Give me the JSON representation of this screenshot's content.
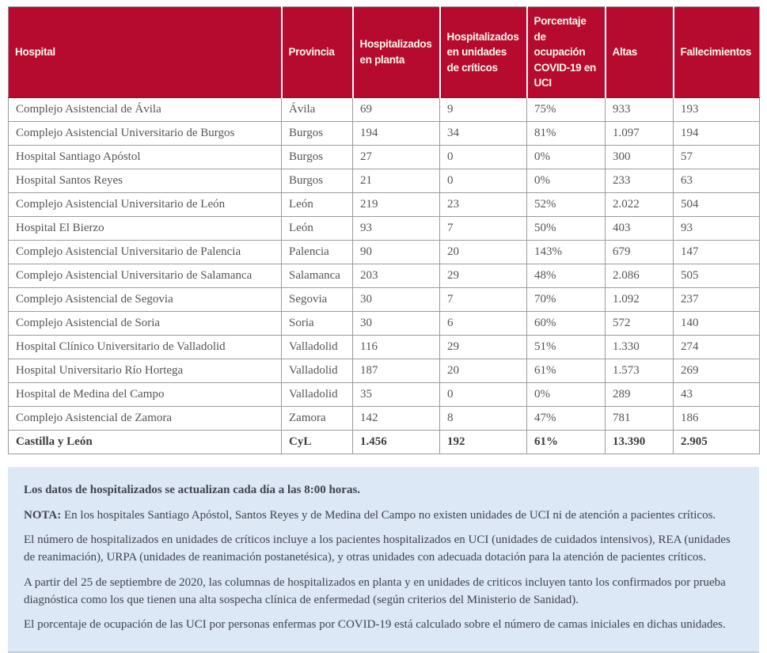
{
  "table": {
    "columns": [
      "Hospital",
      "Provincia",
      "Hospitalizados en planta",
      "Hospitalizados en unidades de críticos",
      "Porcentaje de ocupación COVID-19 en UCI",
      "Altas",
      "Fallecimientos"
    ],
    "rows": [
      [
        "Complejo Asistencial de Ávila",
        "Ávila",
        "69",
        "9",
        "75%",
        "933",
        "193"
      ],
      [
        "Complejo Asistencial Universitario de Burgos",
        "Burgos",
        "194",
        "34",
        "81%",
        "1.097",
        "194"
      ],
      [
        "Hospital Santiago Apóstol",
        "Burgos",
        "27",
        "0",
        "0%",
        "300",
        "57"
      ],
      [
        "Hospital Santos Reyes",
        "Burgos",
        "21",
        "0",
        "0%",
        "233",
        "63"
      ],
      [
        "Complejo Asistencial Universitario de León",
        "León",
        "219",
        "23",
        "52%",
        "2.022",
        "504"
      ],
      [
        "Hospital El Bierzo",
        "León",
        "93",
        "7",
        "50%",
        "403",
        "93"
      ],
      [
        "Complejo Asistencial Universitario de Palencia",
        "Palencia",
        "90",
        "20",
        "143%",
        "679",
        "147"
      ],
      [
        "Complejo Asistencial Universitario de Salamanca",
        "Salamanca",
        "203",
        "29",
        "48%",
        "2.086",
        "505"
      ],
      [
        "Complejo Asistencial de Segovia",
        "Segovia",
        "30",
        "7",
        "70%",
        "1.092",
        "237"
      ],
      [
        "Complejo Asistencial de Soria",
        "Soria",
        "30",
        "6",
        "60%",
        "572",
        "140"
      ],
      [
        "Hospital Clínico Universitario de Valladolid",
        "Valladolid",
        "116",
        "29",
        "51%",
        "1.330",
        "274"
      ],
      [
        "Hospital Universitario Río Hortega",
        "Valladolid",
        "187",
        "20",
        "61%",
        "1.573",
        "269"
      ],
      [
        "Hospital de Medina del Campo",
        "Valladolid",
        "35",
        "0",
        "0%",
        "289",
        "43"
      ],
      [
        "Complejo Asistencial de Zamora",
        "Zamora",
        "142",
        "8",
        "47%",
        "781",
        "186"
      ]
    ],
    "total": [
      "Castilla y León",
      "CyL",
      "1.456",
      "192",
      "61%",
      "13.390",
      "2.905"
    ]
  },
  "notes": {
    "paragraphs": [
      {
        "bold": true,
        "prefix": "",
        "text": "Los datos de hospitalizados se actualizan cada día a las 8:00 horas."
      },
      {
        "bold": false,
        "prefix": "NOTA:",
        "text": " En los hospitales Santiago Apóstol, Santos Reyes y de Medina del Campo no existen unidades de UCI ni de atención a pacientes críticos."
      },
      {
        "bold": false,
        "prefix": "",
        "text": "El número de hospitalizados en unidades de críticos incluye a los pacientes hospitalizados en UCI (unidades de cuidados intensivos), REA (unidades de reanimación), URPA (unidades de reanimación postanetésica), y otras unidades con adecuada dotación para la atención de pacientes críticos."
      },
      {
        "bold": false,
        "prefix": "",
        "text": "A partir del 25 de septiembre de 2020, las columnas de hospitalizados en planta y en unidades de criticos incluyen tanto los confirmados por prueba diagnóstica como los que tienen una alta sospecha clínica de enfermedad (según criterios del Ministerio de Sanidad)."
      },
      {
        "bold": false,
        "prefix": "",
        "text": "El porcentaje de ocupación de las UCI por personas enfermas por COVID-19 está calculado sobre el número de camas iniciales en dichas unidades."
      }
    ]
  },
  "colors": {
    "header_bg": "#b60b2f",
    "header_text": "#fdf8ee",
    "body_text": "#555555",
    "grid_border": "#999999",
    "notes_bg": "#dce8f5",
    "notes_text": "#40434f"
  }
}
